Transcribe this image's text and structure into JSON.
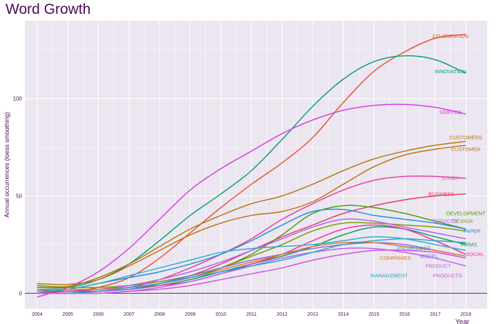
{
  "chart_data": {
    "type": "line",
    "title": "Word Growth",
    "xlabel": "Year",
    "ylabel": "Annual occurrences (loess smoothing)",
    "xlim": [
      2003.6,
      2018.7
    ],
    "ylim": [
      -8,
      140
    ],
    "xticks": [
      2004,
      2005,
      2006,
      2007,
      2008,
      2009,
      2010,
      2011,
      2012,
      2013,
      2014,
      2015,
      2016,
      2017,
      2018
    ],
    "yticks": [
      0,
      50,
      100
    ],
    "hline": 0,
    "grid": true,
    "colors": {
      "panel": "#ebe6f0",
      "grid": "#ffffff",
      "title": "#4b0a55",
      "axis_text": "#4b0a55",
      "zero_line": "#7a1f6e"
    },
    "series": [
      {
        "name": "CO-CREATION",
        "color": "#e8512e",
        "label_x": 2017.5,
        "label_y": 132,
        "x": [
          2004,
          2005,
          2006,
          2007,
          2008,
          2009,
          2010,
          2011,
          2012,
          2013,
          2014,
          2015,
          2016,
          2017,
          2018
        ],
        "values": [
          2,
          1,
          3,
          8,
          18,
          31,
          44,
          56,
          67,
          80,
          98,
          114,
          124,
          131,
          133
        ]
      },
      {
        "name": "INNOVATION",
        "color": "#00a07a",
        "label_x": 2017.5,
        "label_y": 114,
        "x": [
          2004,
          2005,
          2006,
          2007,
          2008,
          2009,
          2010,
          2011,
          2012,
          2013,
          2014,
          2015,
          2016,
          2017,
          2018
        ],
        "values": [
          3,
          3,
          7,
          15,
          27,
          40,
          51,
          63,
          79,
          96,
          110,
          119,
          122,
          120,
          113
        ]
      },
      {
        "name": "SERVICE",
        "color": "#d63fe0",
        "label_x": 2017.5,
        "label_y": 93,
        "x": [
          2004,
          2005,
          2006,
          2007,
          2008,
          2009,
          2010,
          2011,
          2012,
          2013,
          2014,
          2015,
          2016,
          2017,
          2018
        ],
        "values": [
          -2,
          3,
          11,
          23,
          38,
          53,
          64,
          73,
          82,
          89,
          94,
          96.5,
          97,
          95.5,
          92
        ]
      },
      {
        "name": "CUSTOMERS",
        "color": "#b07a0c",
        "label_x": 2018.0,
        "label_y": 80,
        "x": [
          2004,
          2005,
          2006,
          2007,
          2008,
          2009,
          2010,
          2011,
          2012,
          2013,
          2014,
          2015,
          2016,
          2017,
          2018
        ],
        "values": [
          4,
          3.5,
          8,
          15,
          24,
          33,
          40,
          46,
          50,
          56,
          63,
          69,
          73,
          76,
          78
        ]
      },
      {
        "name": "CUSTOMER",
        "color": "#c0720a",
        "label_x": 2018.0,
        "label_y": 74,
        "x": [
          2004,
          2005,
          2006,
          2007,
          2008,
          2009,
          2010,
          2011,
          2012,
          2013,
          2014,
          2015,
          2016,
          2017,
          2018
        ],
        "values": [
          5,
          4.5,
          7,
          14,
          22,
          30,
          36,
          40,
          42,
          47,
          56,
          65,
          71,
          74,
          76
        ]
      },
      {
        "name": "STUDY",
        "color": "#ee3d9f",
        "label_x": 2017.5,
        "label_y": 59,
        "x": [
          2004,
          2005,
          2006,
          2007,
          2008,
          2009,
          2010,
          2011,
          2012,
          2013,
          2014,
          2015,
          2016,
          2017,
          2018
        ],
        "values": [
          0,
          0,
          1,
          3,
          7,
          13,
          20,
          28,
          38,
          46,
          53,
          58,
          60,
          60,
          59
        ]
      },
      {
        "name": "BUSINESS",
        "color": "#e73a65",
        "label_x": 2017.2,
        "label_y": 51,
        "x": [
          2004,
          2005,
          2006,
          2007,
          2008,
          2009,
          2010,
          2011,
          2012,
          2013,
          2014,
          2015,
          2016,
          2017,
          2018
        ],
        "values": [
          0,
          0,
          1,
          2,
          5,
          9,
          15,
          22,
          29,
          35,
          41,
          45,
          48,
          50,
          51
        ]
      },
      {
        "name": "DEVELOPMENT",
        "color": "#4c9a12",
        "label_x": 2018.0,
        "label_y": 41,
        "x": [
          2004,
          2005,
          2006,
          2007,
          2008,
          2009,
          2010,
          2011,
          2012,
          2013,
          2014,
          2015,
          2016,
          2017,
          2018
        ],
        "values": [
          1,
          1,
          2,
          3,
          5,
          8,
          13,
          20,
          30,
          41,
          45,
          44,
          41,
          37,
          33
        ]
      },
      {
        "name": "DESIGN",
        "color": "#7b9a00",
        "label_x": 2017.9,
        "label_y": 37,
        "x": [
          2004,
          2005,
          2006,
          2007,
          2008,
          2009,
          2010,
          2011,
          2012,
          2013,
          2014,
          2015,
          2016,
          2017,
          2018
        ],
        "values": [
          4,
          3,
          3,
          4,
          6,
          9,
          13,
          19,
          25,
          32,
          36,
          36,
          35,
          34,
          32
        ]
      },
      {
        "name": "PAPER",
        "color": "#1f8fe0",
        "label_x": 2018.2,
        "label_y": 32,
        "x": [
          2004,
          2005,
          2006,
          2007,
          2008,
          2009,
          2010,
          2011,
          2012,
          2013,
          2014,
          2015,
          2016,
          2017,
          2018
        ],
        "values": [
          0,
          2,
          5,
          8,
          11,
          15,
          20,
          27,
          35,
          42,
          43,
          40,
          38,
          36,
          33
        ]
      },
      {
        "name": "SERVICES",
        "color": "#b45ff2",
        "label_x": 2017.3,
        "label_y": 37,
        "x": [
          2004,
          2005,
          2006,
          2007,
          2008,
          2009,
          2010,
          2011,
          2012,
          2013,
          2014,
          2015,
          2016,
          2017,
          2018
        ],
        "values": [
          1,
          1,
          2,
          4,
          7,
          11,
          16,
          22,
          28,
          34,
          38,
          37,
          34,
          31,
          28
        ]
      },
      {
        "name": "FIRMS",
        "color": "#0a9e64",
        "label_x": 2018.1,
        "label_y": 25,
        "x": [
          2004,
          2005,
          2006,
          2007,
          2008,
          2009,
          2010,
          2011,
          2012,
          2013,
          2014,
          2015,
          2016,
          2017,
          2018
        ],
        "values": [
          1,
          1,
          1,
          2,
          4,
          7,
          11,
          15,
          19,
          24,
          30,
          34,
          33,
          29,
          25
        ]
      },
      {
        "name": "SOCIAL",
        "color": "#f032a0",
        "label_x": 2018.3,
        "label_y": 20,
        "x": [
          2004,
          2005,
          2006,
          2007,
          2008,
          2009,
          2010,
          2011,
          2012,
          2013,
          2014,
          2015,
          2016,
          2017,
          2018
        ],
        "values": [
          0,
          1,
          2,
          3,
          4,
          6,
          10,
          15,
          20,
          27,
          33,
          35,
          33,
          27,
          20
        ]
      },
      {
        "name": "KNOWLEDGE",
        "color": "#2ab0c4",
        "label_x": 2016.3,
        "label_y": 23,
        "x": [
          2004,
          2005,
          2006,
          2007,
          2008,
          2009,
          2010,
          2011,
          2012,
          2013,
          2014,
          2015,
          2016,
          2017,
          2018
        ],
        "values": [
          1,
          2,
          5,
          9,
          13,
          17,
          21,
          23,
          24,
          25,
          27,
          29,
          28,
          25,
          22
        ]
      },
      {
        "name": "MODEL",
        "color": "#7c6cf0",
        "label_x": 2016.8,
        "label_y": 19,
        "x": [
          2004,
          2005,
          2006,
          2007,
          2008,
          2009,
          2010,
          2011,
          2012,
          2013,
          2014,
          2015,
          2016,
          2017,
          2018
        ],
        "values": [
          0,
          0,
          1,
          2,
          5,
          9,
          13,
          17,
          20,
          23,
          25,
          26,
          25,
          22,
          19
        ]
      },
      {
        "name": "COMPANIES",
        "color": "#e07a20",
        "label_x": 2015.7,
        "label_y": 18,
        "x": [
          2004,
          2005,
          2006,
          2007,
          2008,
          2009,
          2010,
          2011,
          2012,
          2013,
          2014,
          2015,
          2016,
          2017,
          2018
        ],
        "values": [
          2,
          2,
          2,
          3,
          5,
          8,
          12,
          16,
          20,
          24,
          26,
          26,
          24,
          22,
          19
        ]
      },
      {
        "name": "PRODUCT",
        "color": "#c05ee8",
        "label_x": 2017.1,
        "label_y": 14,
        "x": [
          2004,
          2005,
          2006,
          2007,
          2008,
          2009,
          2010,
          2011,
          2012,
          2013,
          2014,
          2015,
          2016,
          2017,
          2018
        ],
        "values": [
          0,
          0,
          0,
          1,
          3,
          6,
          10,
          14,
          18,
          21,
          23,
          23,
          21,
          18,
          14
        ]
      },
      {
        "name": "MANAGEMENT",
        "color": "#2aa6cc",
        "label_x": 2015.5,
        "label_y": 9,
        "x": [
          2004,
          2005,
          2006,
          2007,
          2008,
          2009,
          2010,
          2011,
          2012,
          2013,
          2014,
          2015,
          2016,
          2017,
          2018
        ],
        "values": [
          0,
          0,
          1,
          3,
          5,
          8,
          11,
          14,
          17,
          21,
          25,
          27,
          28,
          27,
          26
        ]
      },
      {
        "name": "PRODUCTS",
        "color": "#d24fe0",
        "label_x": 2017.4,
        "label_y": 9,
        "x": [
          2004,
          2005,
          2006,
          2007,
          2008,
          2009,
          2010,
          2011,
          2012,
          2013,
          2014,
          2015,
          2016,
          2017,
          2018
        ],
        "values": [
          0,
          0,
          0,
          1,
          2,
          4,
          7,
          10,
          13,
          17,
          20,
          22,
          22,
          21,
          18
        ]
      }
    ]
  }
}
